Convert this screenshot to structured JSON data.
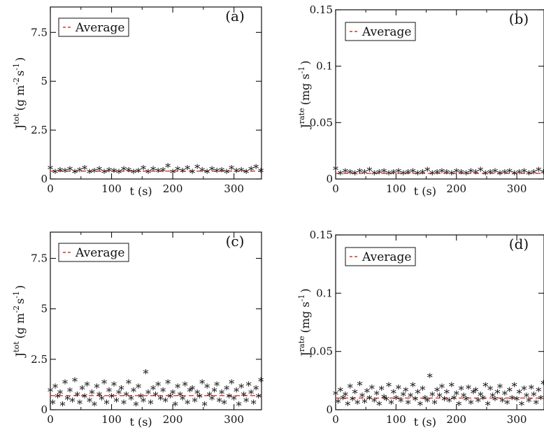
{
  "figure": {
    "legend_label": "Average",
    "series_marker": "*",
    "colors": {
      "points": "#111111",
      "average": "#d9362b",
      "frame": "#111111"
    }
  },
  "chart_data": [
    {
      "panel": "(a)",
      "type": "scatter",
      "xlabel": "t (s)",
      "ylabel_main": "J",
      "ylabel_sup": "tot",
      "ylabel_unit": "(g m",
      "ylabel_exp1": "-2",
      "ylabel_exp2": "-1",
      "ylabel_s": "s",
      "ylabel_close": ")",
      "xlim": [
        0,
        345
      ],
      "ylim": [
        0,
        8.8
      ],
      "xticks": [
        0,
        100,
        200,
        300
      ],
      "xtick_labels": [
        "0",
        "100",
        "200",
        "300"
      ],
      "yticks": [
        0,
        2.5,
        5,
        7.5
      ],
      "ytick_labels": [
        "0",
        "2.5",
        "5",
        "7.5"
      ],
      "average": 0.4,
      "series": [
        {
          "x": [
            0,
            8,
            16,
            24,
            32,
            40,
            48,
            56,
            64,
            72,
            80,
            88,
            96,
            104,
            112,
            120,
            128,
            136,
            144,
            152,
            160,
            168,
            176,
            184,
            192,
            200,
            208,
            216,
            224,
            232,
            240,
            248,
            256,
            264,
            272,
            280,
            288,
            296,
            304,
            312,
            320,
            328,
            336,
            344
          ],
          "y": [
            0.5,
            0.3,
            0.4,
            0.35,
            0.45,
            0.3,
            0.4,
            0.5,
            0.3,
            0.35,
            0.45,
            0.3,
            0.4,
            0.35,
            0.3,
            0.45,
            0.4,
            0.3,
            0.35,
            0.5,
            0.3,
            0.45,
            0.35,
            0.4,
            0.6,
            0.3,
            0.45,
            0.35,
            0.5,
            0.3,
            0.55,
            0.4,
            0.3,
            0.45,
            0.35,
            0.4,
            0.3,
            0.5,
            0.35,
            0.4,
            0.3,
            0.45,
            0.55,
            0.35
          ]
        }
      ]
    },
    {
      "panel": "(b)",
      "type": "scatter",
      "xlabel": "t (s)",
      "ylabel_main": "J",
      "ylabel_sup": "rate",
      "ylabel_unit": "(mg s",
      "ylabel_exp1": "-1",
      "ylabel_exp2": "",
      "ylabel_s": "",
      "ylabel_close": ")",
      "xlim": [
        0,
        345
      ],
      "ylim": [
        0,
        0.15
      ],
      "xticks": [
        0,
        100,
        200,
        300
      ],
      "xtick_labels": [
        "0",
        "100",
        "200",
        "300"
      ],
      "yticks": [
        0,
        0.05,
        0.1,
        0.15
      ],
      "ytick_labels": [
        "0",
        "0.05",
        "0.1",
        "0.15"
      ],
      "average": 0.005,
      "series": [
        {
          "x": [
            0,
            8,
            16,
            24,
            32,
            40,
            48,
            56,
            64,
            72,
            80,
            88,
            96,
            104,
            112,
            120,
            128,
            136,
            144,
            152,
            160,
            168,
            176,
            184,
            192,
            200,
            208,
            216,
            224,
            232,
            240,
            248,
            256,
            264,
            272,
            280,
            288,
            296,
            304,
            312,
            320,
            328,
            336,
            344
          ],
          "y": [
            0.008,
            0.004,
            0.006,
            0.005,
            0.004,
            0.006,
            0.005,
            0.007,
            0.004,
            0.005,
            0.006,
            0.004,
            0.005,
            0.006,
            0.004,
            0.005,
            0.006,
            0.004,
            0.005,
            0.007,
            0.004,
            0.005,
            0.006,
            0.005,
            0.004,
            0.006,
            0.005,
            0.004,
            0.006,
            0.005,
            0.007,
            0.004,
            0.005,
            0.006,
            0.004,
            0.005,
            0.006,
            0.004,
            0.005,
            0.006,
            0.004,
            0.005,
            0.007,
            0.005
          ]
        }
      ]
    },
    {
      "panel": "(c)",
      "type": "scatter",
      "xlabel": "t (s)",
      "ylabel_main": "J",
      "ylabel_sup": "tot",
      "ylabel_unit": "(g m",
      "ylabel_exp1": "-2",
      "ylabel_exp2": "-1",
      "ylabel_s": "s",
      "ylabel_close": ")",
      "xlim": [
        0,
        345
      ],
      "ylim": [
        0,
        8.8
      ],
      "xticks": [
        0,
        100,
        200,
        300
      ],
      "xtick_labels": [
        "0",
        "100",
        "200",
        "300"
      ],
      "yticks": [
        0,
        2.5,
        5,
        7.5
      ],
      "ytick_labels": [
        "0",
        "2.5",
        "5",
        "7.5"
      ],
      "average": 0.7,
      "series": [
        {
          "x": [
            0,
            4,
            8,
            12,
            16,
            20,
            24,
            28,
            32,
            36,
            40,
            44,
            48,
            52,
            56,
            60,
            64,
            68,
            72,
            76,
            80,
            84,
            88,
            92,
            96,
            100,
            104,
            108,
            112,
            116,
            120,
            124,
            128,
            132,
            136,
            140,
            144,
            148,
            152,
            156,
            160,
            164,
            168,
            172,
            176,
            180,
            184,
            188,
            192,
            196,
            200,
            204,
            208,
            212,
            216,
            220,
            224,
            228,
            232,
            236,
            240,
            244,
            248,
            252,
            256,
            260,
            264,
            268,
            272,
            276,
            280,
            284,
            288,
            292,
            296,
            300,
            304,
            308,
            312,
            316,
            320,
            324,
            328,
            332,
            336,
            340,
            344
          ],
          "y": [
            0.9,
            0.3,
            1.1,
            0.6,
            0.8,
            0.2,
            1.3,
            0.5,
            0.9,
            0.4,
            1.4,
            0.7,
            0.3,
            1.0,
            0.6,
            1.2,
            0.4,
            0.8,
            0.2,
            1.1,
            0.7,
            0.5,
            1.3,
            0.3,
            0.9,
            0.6,
            1.2,
            0.4,
            0.8,
            1.0,
            0.3,
            0.7,
            1.3,
            0.5,
            0.9,
            0.2,
            1.1,
            0.6,
            0.4,
            1.8,
            0.8,
            0.3,
            1.0,
            0.7,
            1.2,
            0.5,
            0.9,
            0.4,
            1.3,
            0.6,
            0.8,
            0.2,
            1.1,
            0.7,
            0.5,
            1.2,
            0.3,
            0.9,
            1.0,
            0.4,
            0.8,
            0.6,
            1.3,
            0.2,
            1.1,
            0.7,
            0.5,
            0.9,
            1.2,
            0.4,
            0.8,
            0.3,
            1.0,
            0.6,
            1.3,
            0.5,
            0.9,
            0.2,
            1.1,
            0.7,
            0.4,
            1.2,
            0.8,
            0.3,
            1.0,
            0.6,
            1.4
          ]
        }
      ]
    },
    {
      "panel": "(d)",
      "type": "scatter",
      "xlabel": "t (s)",
      "ylabel_main": "J",
      "ylabel_sup": "rate",
      "ylabel_unit": "(mg s",
      "ylabel_exp1": "-1",
      "ylabel_exp2": "",
      "ylabel_s": "",
      "ylabel_close": ")",
      "xlim": [
        0,
        345
      ],
      "ylim": [
        0,
        0.15
      ],
      "xticks": [
        0,
        100,
        200,
        300
      ],
      "xtick_labels": [
        "0",
        "100",
        "200",
        "300"
      ],
      "yticks": [
        0,
        0.05,
        0.1,
        0.15
      ],
      "ytick_labels": [
        "0",
        "0.05",
        "0.1",
        "0.15"
      ],
      "average": 0.01,
      "series": [
        {
          "x": [
            0,
            4,
            8,
            12,
            16,
            20,
            24,
            28,
            32,
            36,
            40,
            44,
            48,
            52,
            56,
            60,
            64,
            68,
            72,
            76,
            80,
            84,
            88,
            92,
            96,
            100,
            104,
            108,
            112,
            116,
            120,
            124,
            128,
            132,
            136,
            140,
            144,
            148,
            152,
            156,
            160,
            164,
            168,
            172,
            176,
            180,
            184,
            188,
            192,
            196,
            200,
            204,
            208,
            212,
            216,
            220,
            224,
            228,
            232,
            236,
            240,
            244,
            248,
            252,
            256,
            260,
            264,
            268,
            272,
            276,
            280,
            284,
            288,
            292,
            296,
            300,
            304,
            308,
            312,
            316,
            320,
            324,
            328,
            332,
            336,
            340,
            344
          ],
          "y": [
            0.013,
            0.006,
            0.016,
            0.009,
            0.012,
            0.004,
            0.019,
            0.008,
            0.014,
            0.005,
            0.021,
            0.011,
            0.006,
            0.015,
            0.009,
            0.018,
            0.007,
            0.013,
            0.004,
            0.017,
            0.01,
            0.008,
            0.02,
            0.005,
            0.014,
            0.009,
            0.018,
            0.007,
            0.012,
            0.016,
            0.005,
            0.011,
            0.02,
            0.008,
            0.014,
            0.004,
            0.017,
            0.009,
            0.007,
            0.028,
            0.012,
            0.005,
            0.016,
            0.011,
            0.019,
            0.008,
            0.014,
            0.007,
            0.02,
            0.009,
            0.013,
            0.004,
            0.017,
            0.011,
            0.008,
            0.018,
            0.005,
            0.014,
            0.016,
            0.007,
            0.012,
            0.009,
            0.02,
            0.004,
            0.017,
            0.011,
            0.008,
            0.014,
            0.019,
            0.007,
            0.013,
            0.005,
            0.016,
            0.009,
            0.02,
            0.008,
            0.014,
            0.004,
            0.017,
            0.011,
            0.007,
            0.018,
            0.012,
            0.005,
            0.016,
            0.009,
            0.022
          ]
        }
      ]
    }
  ]
}
